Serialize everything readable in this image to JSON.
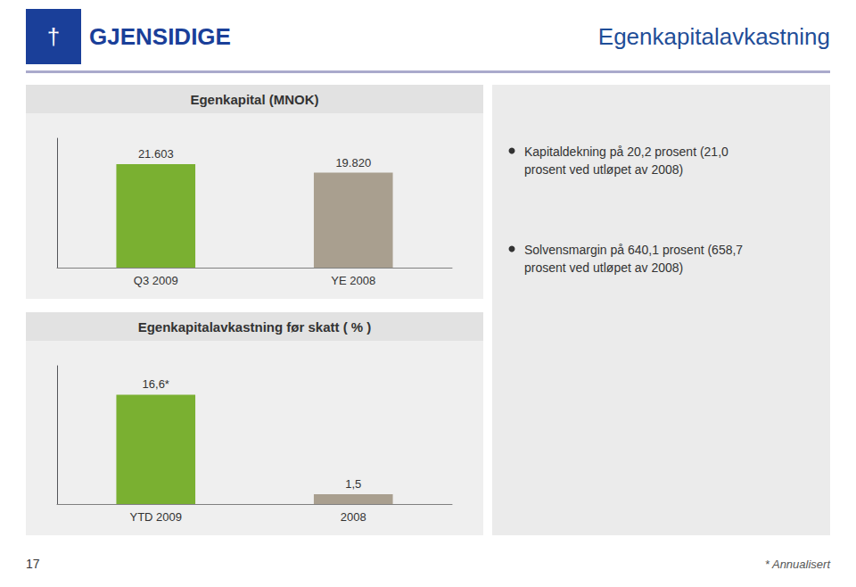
{
  "title": "Egenkapitalavkastning",
  "annotations": [
    "†",
    "GJENSIDIGE",
    "Kapitaldekning på 20,2 prosent (21,0\nprosent ved utløpet av 2008)",
    "Solvensmargin på 640,1 prosent (658,7\nprosent ved utløpet av 2008)",
    "17",
    "* Annualisert"
  ],
  "chart_data": [
    {
      "type": "bar",
      "title": "Egenkapital (MNOK)",
      "categories": [
        "Q3 2009",
        "YE 2008"
      ],
      "values": [
        21.603,
        19.82
      ],
      "value_labels": [
        "21.603",
        "19.820"
      ],
      "colors": [
        "#7AB031",
        "#A99F8F"
      ],
      "ylim": [
        0,
        27
      ],
      "grid": false,
      "data_labels": true,
      "tick_labels": "x"
    },
    {
      "type": "bar",
      "title": "Egenkapitalavkastning før skatt ( % )",
      "categories": [
        "YTD 2009",
        "2008"
      ],
      "values": [
        16.6,
        1.5
      ],
      "value_labels": [
        "16,6*",
        "1,5"
      ],
      "colors": [
        "#7AB031",
        "#A99F8F"
      ],
      "ylim": [
        0,
        21
      ],
      "grid": false,
      "data_labels": true,
      "tick_labels": "x"
    }
  ]
}
